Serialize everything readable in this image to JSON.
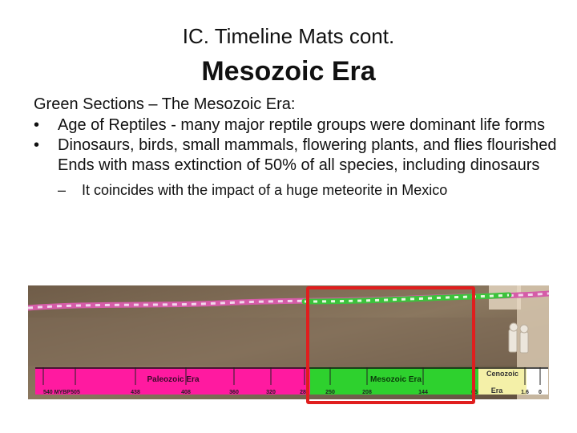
{
  "slide": {
    "title_line1": "IC. Timeline Mats cont.",
    "title_line2": "Mesozoic Era",
    "intro": "Green Sections – The Mesozoic Era:",
    "bullets": [
      "Age of Reptiles - many major reptile groups were dominant life forms",
      "Dinosaurs, birds, small mammals, flowering plants, and flies flourished Ends with mass extinction of 50% of all species, including dinosaurs"
    ],
    "sub_bullet": "It coincides with the impact of a huge meteorite in Mexico"
  },
  "timeline_mat": {
    "paleozoic_label": "Paleozoic Era",
    "mesozoic_label": "Mesozoic Era",
    "cenozoic_label_1": "Cenozoic",
    "cenozoic_label_2": "Era",
    "ticks": [
      "540 MYBP",
      "505",
      "438",
      "408",
      "360",
      "320",
      "286",
      "250",
      "208",
      "144",
      "65",
      "1.6",
      "0"
    ],
    "colors": {
      "paleozoic": "#ff1aa0",
      "mesozoic": "#2ed12e",
      "cenozoic": "#f4f0a8",
      "highlight": "#e01e1e"
    }
  }
}
